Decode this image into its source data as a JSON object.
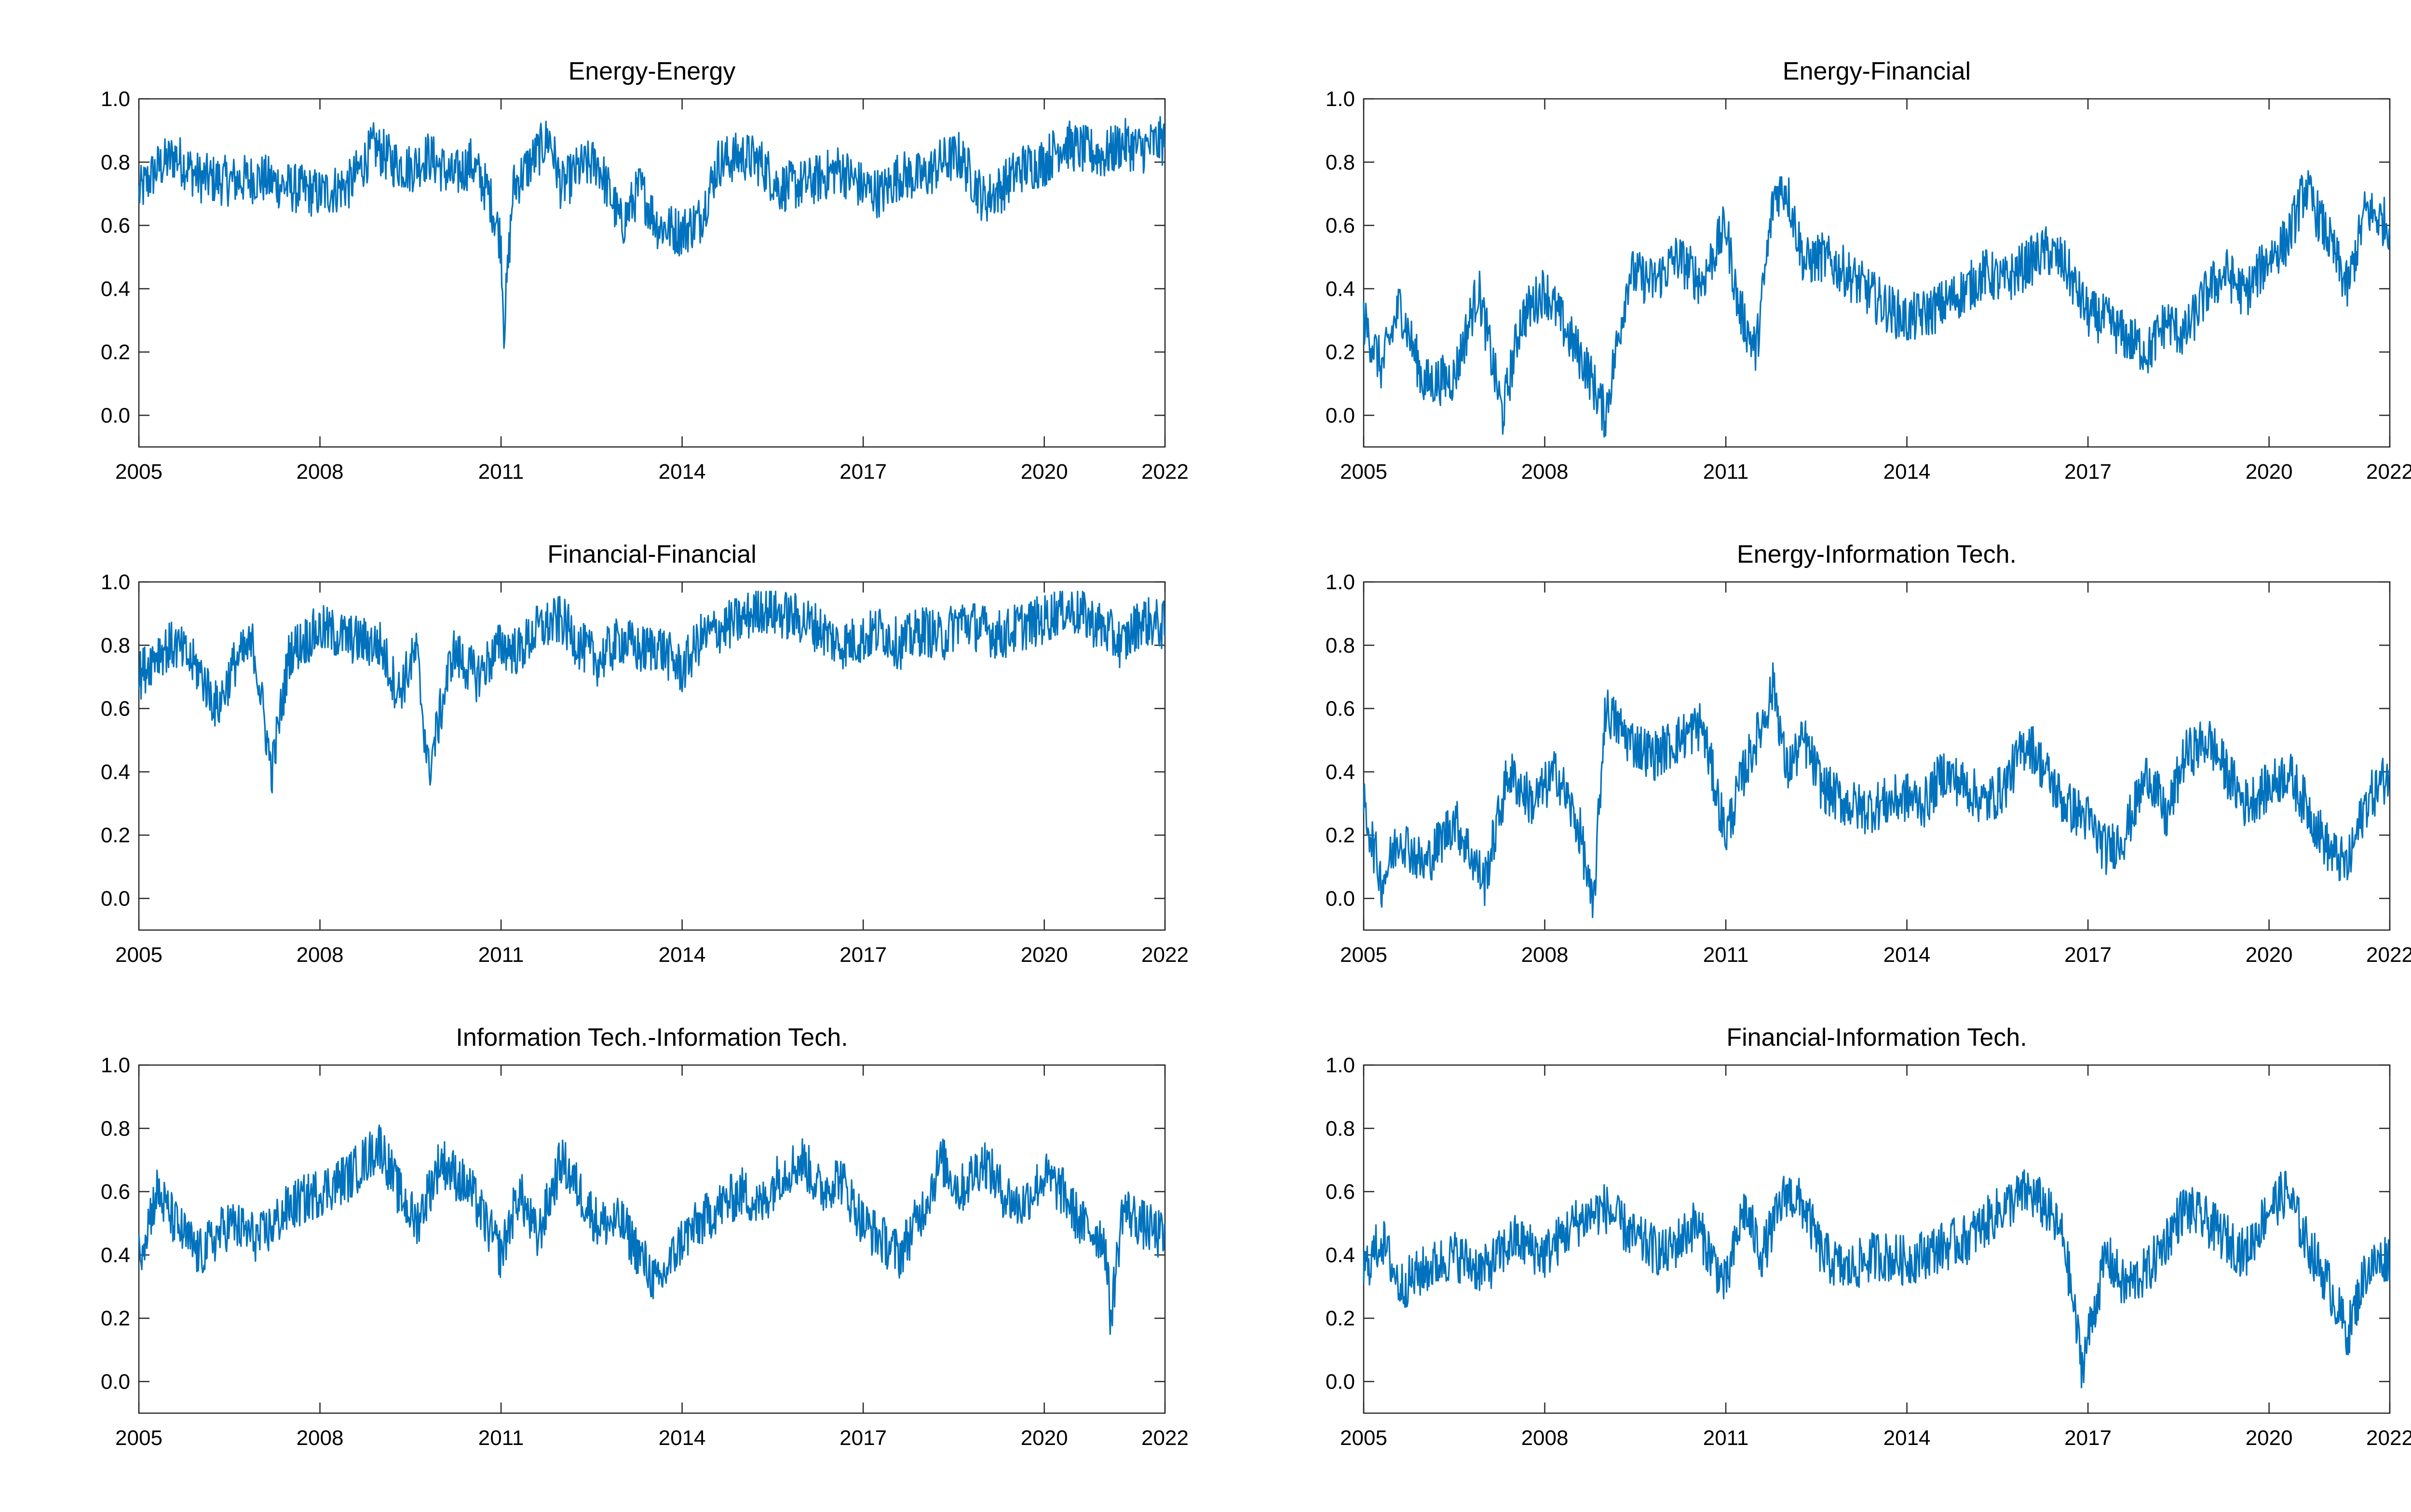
{
  "figure": {
    "line_color": "#0072BD"
  },
  "chart_data": [
    {
      "type": "line",
      "title": "Energy-Energy",
      "xlabel": "",
      "ylabel": "",
      "xlim": [
        2005,
        2022
      ],
      "ylim": [
        -0.1,
        1.0
      ],
      "xticks": [
        "2005",
        "2008",
        "2011",
        "2014",
        "2017",
        "2020",
        "2022"
      ],
      "yticks": [
        "0.0",
        "0.2",
        "0.4",
        "0.6",
        "0.8",
        "1.0"
      ],
      "grid": false,
      "series": [
        {
          "x": [
            2005.0,
            2005.3,
            2005.6,
            2006.0,
            2006.5,
            2007.0,
            2007.5,
            2008.0,
            2008.5,
            2008.9,
            2009.2,
            2009.5,
            2009.8,
            2010.2,
            2010.5,
            2010.8,
            2011.0,
            2011.05,
            2011.2,
            2011.5,
            2011.8,
            2012.0,
            2012.3,
            2012.6,
            2013.0,
            2013.3,
            2013.6,
            2014.0,
            2014.3,
            2014.6,
            2015.0,
            2015.3,
            2015.6,
            2016.0,
            2016.3,
            2016.6,
            2017.0,
            2017.3,
            2017.6,
            2018.0,
            2018.3,
            2018.6,
            2019.0,
            2019.3,
            2019.6,
            2020.0,
            2020.3,
            2020.6,
            2021.0,
            2021.3,
            2021.6,
            2022.0
          ],
          "y": [
            0.7,
            0.78,
            0.82,
            0.75,
            0.74,
            0.75,
            0.72,
            0.7,
            0.73,
            0.85,
            0.8,
            0.78,
            0.82,
            0.75,
            0.8,
            0.7,
            0.55,
            0.27,
            0.72,
            0.8,
            0.88,
            0.72,
            0.78,
            0.8,
            0.6,
            0.72,
            0.6,
            0.58,
            0.62,
            0.8,
            0.82,
            0.8,
            0.72,
            0.73,
            0.75,
            0.78,
            0.72,
            0.7,
            0.76,
            0.75,
            0.8,
            0.82,
            0.68,
            0.72,
            0.78,
            0.8,
            0.86,
            0.84,
            0.82,
            0.86,
            0.84,
            0.87
          ]
        }
      ]
    },
    {
      "type": "line",
      "title": "Energy-Financial",
      "xlabel": "",
      "ylabel": "",
      "xlim": [
        2005,
        2022
      ],
      "ylim": [
        -0.1,
        1.0
      ],
      "xticks": [
        "2005",
        "2008",
        "2011",
        "2014",
        "2017",
        "2020",
        "2022"
      ],
      "yticks": [
        "0.0",
        "0.2",
        "0.4",
        "0.6",
        "0.8",
        "1.0"
      ],
      "grid": false,
      "series": [
        {
          "x": [
            2005.0,
            2005.3,
            2005.6,
            2006.0,
            2006.5,
            2006.9,
            2007.3,
            2007.6,
            2008.0,
            2008.4,
            2008.7,
            2009.0,
            2009.4,
            2009.8,
            2010.2,
            2010.6,
            2011.0,
            2011.2,
            2011.5,
            2011.8,
            2012.0,
            2012.3,
            2012.6,
            2013.0,
            2013.3,
            2013.6,
            2014.0,
            2014.3,
            2014.6,
            2015.0,
            2015.3,
            2015.6,
            2016.0,
            2016.3,
            2016.6,
            2017.0,
            2017.3,
            2017.6,
            2018.0,
            2018.3,
            2018.6,
            2019.0,
            2019.3,
            2019.6,
            2020.0,
            2020.3,
            2020.6,
            2021.0,
            2021.3,
            2021.6,
            2022.0
          ],
          "y": [
            0.3,
            0.15,
            0.35,
            0.1,
            0.12,
            0.4,
            0.0,
            0.3,
            0.4,
            0.25,
            0.15,
            0.0,
            0.45,
            0.42,
            0.5,
            0.42,
            0.6,
            0.35,
            0.2,
            0.7,
            0.72,
            0.48,
            0.5,
            0.45,
            0.4,
            0.35,
            0.3,
            0.32,
            0.35,
            0.4,
            0.45,
            0.42,
            0.48,
            0.52,
            0.48,
            0.32,
            0.3,
            0.25,
            0.2,
            0.3,
            0.25,
            0.4,
            0.45,
            0.38,
            0.5,
            0.55,
            0.72,
            0.55,
            0.4,
            0.65,
            0.6
          ]
        }
      ]
    },
    {
      "type": "line",
      "title": "Financial-Financial",
      "xlabel": "",
      "ylabel": "",
      "xlim": [
        2005,
        2022
      ],
      "ylim": [
        -0.1,
        1.0
      ],
      "xticks": [
        "2005",
        "2008",
        "2011",
        "2014",
        "2017",
        "2020",
        "2022"
      ],
      "yticks": [
        "0.0",
        "0.2",
        "0.4",
        "0.6",
        "0.8",
        "1.0"
      ],
      "grid": false,
      "series": [
        {
          "x": [
            2005.0,
            2005.3,
            2005.6,
            2006.0,
            2006.3,
            2006.6,
            2006.9,
            2007.2,
            2007.5,
            2008.0,
            2008.5,
            2009.0,
            2009.3,
            2009.6,
            2009.8,
            2010.2,
            2010.6,
            2011.0,
            2011.3,
            2011.6,
            2012.0,
            2012.3,
            2012.6,
            2013.0,
            2013.3,
            2013.6,
            2014.0,
            2014.3,
            2014.6,
            2015.0,
            2015.3,
            2015.6,
            2016.0,
            2016.3,
            2016.6,
            2017.0,
            2017.3,
            2017.6,
            2018.0,
            2018.3,
            2018.6,
            2019.0,
            2019.3,
            2019.6,
            2020.0,
            2020.3,
            2020.6,
            2021.0,
            2021.3,
            2021.6,
            2022.0
          ],
          "y": [
            0.7,
            0.78,
            0.8,
            0.72,
            0.6,
            0.75,
            0.8,
            0.4,
            0.78,
            0.85,
            0.82,
            0.8,
            0.65,
            0.78,
            0.4,
            0.78,
            0.7,
            0.8,
            0.78,
            0.85,
            0.88,
            0.8,
            0.75,
            0.82,
            0.78,
            0.8,
            0.72,
            0.82,
            0.85,
            0.88,
            0.92,
            0.9,
            0.88,
            0.85,
            0.8,
            0.82,
            0.85,
            0.8,
            0.85,
            0.82,
            0.88,
            0.85,
            0.83,
            0.86,
            0.88,
            0.92,
            0.9,
            0.85,
            0.8,
            0.88,
            0.86
          ]
        }
      ]
    },
    {
      "type": "line",
      "title": "Energy-Information Tech.",
      "xlabel": "",
      "ylabel": "",
      "xlim": [
        2005,
        2022
      ],
      "ylim": [
        -0.1,
        1.0
      ],
      "xticks": [
        "2005",
        "2008",
        "2011",
        "2014",
        "2017",
        "2020",
        "2022"
      ],
      "yticks": [
        "0.0",
        "0.2",
        "0.4",
        "0.6",
        "0.8",
        "1.0"
      ],
      "grid": false,
      "series": [
        {
          "x": [
            2005.0,
            2005.3,
            2005.6,
            2006.0,
            2006.5,
            2007.0,
            2007.4,
            2007.8,
            2008.2,
            2008.6,
            2008.8,
            2009.0,
            2009.4,
            2009.8,
            2010.2,
            2010.6,
            2011.0,
            2011.3,
            2011.6,
            2011.8,
            2012.0,
            2012.3,
            2012.6,
            2013.0,
            2013.3,
            2013.6,
            2014.0,
            2014.3,
            2014.6,
            2015.0,
            2015.3,
            2015.6,
            2016.0,
            2016.3,
            2016.6,
            2017.0,
            2017.3,
            2017.6,
            2018.0,
            2018.3,
            2018.6,
            2019.0,
            2019.3,
            2019.6,
            2020.0,
            2020.3,
            2020.6,
            2021.0,
            2021.3,
            2021.6,
            2022.0
          ],
          "y": [
            0.3,
            0.05,
            0.2,
            0.1,
            0.25,
            0.05,
            0.4,
            0.3,
            0.4,
            0.2,
            -0.05,
            0.6,
            0.5,
            0.45,
            0.5,
            0.55,
            0.2,
            0.4,
            0.55,
            0.68,
            0.4,
            0.5,
            0.35,
            0.3,
            0.28,
            0.3,
            0.32,
            0.3,
            0.4,
            0.35,
            0.3,
            0.35,
            0.5,
            0.4,
            0.3,
            0.25,
            0.15,
            0.2,
            0.4,
            0.25,
            0.45,
            0.5,
            0.4,
            0.3,
            0.35,
            0.4,
            0.3,
            0.15,
            0.1,
            0.3,
            0.4
          ]
        }
      ]
    },
    {
      "type": "line",
      "title": "Information Tech.-Information Tech.",
      "xlabel": "",
      "ylabel": "",
      "xlim": [
        2005,
        2022
      ],
      "ylim": [
        -0.1,
        1.0
      ],
      "xticks": [
        "2005",
        "2008",
        "2011",
        "2014",
        "2017",
        "2020",
        "2022"
      ],
      "yticks": [
        "0.0",
        "0.2",
        "0.4",
        "0.6",
        "0.8",
        "1.0"
      ],
      "grid": false,
      "series": [
        {
          "x": [
            2005.0,
            2005.3,
            2005.6,
            2006.0,
            2006.5,
            2007.0,
            2007.5,
            2008.0,
            2008.5,
            2009.0,
            2009.3,
            2009.6,
            2010.0,
            2010.5,
            2011.0,
            2011.3,
            2011.6,
            2012.0,
            2012.3,
            2012.6,
            2013.0,
            2013.3,
            2013.6,
            2014.0,
            2014.3,
            2014.6,
            2015.0,
            2015.3,
            2015.6,
            2016.0,
            2016.3,
            2016.6,
            2017.0,
            2017.3,
            2017.6,
            2018.0,
            2018.3,
            2018.6,
            2019.0,
            2019.3,
            2019.6,
            2020.0,
            2020.3,
            2020.6,
            2021.0,
            2021.1,
            2021.3,
            2021.6,
            2022.0
          ],
          "y": [
            0.4,
            0.6,
            0.5,
            0.4,
            0.5,
            0.45,
            0.55,
            0.6,
            0.65,
            0.75,
            0.6,
            0.5,
            0.7,
            0.6,
            0.4,
            0.6,
            0.45,
            0.7,
            0.6,
            0.5,
            0.5,
            0.4,
            0.3,
            0.45,
            0.5,
            0.55,
            0.6,
            0.55,
            0.65,
            0.7,
            0.6,
            0.65,
            0.5,
            0.45,
            0.4,
            0.55,
            0.7,
            0.6,
            0.7,
            0.6,
            0.55,
            0.65,
            0.6,
            0.5,
            0.45,
            0.2,
            0.55,
            0.5,
            0.45
          ]
        }
      ]
    },
    {
      "type": "line",
      "title": "Financial-Information Tech.",
      "xlabel": "",
      "ylabel": "",
      "xlim": [
        2005,
        2022
      ],
      "ylim": [
        -0.1,
        1.0
      ],
      "xticks": [
        "2005",
        "2008",
        "2011",
        "2014",
        "2017",
        "2020",
        "2022"
      ],
      "yticks": [
        "0.0",
        "0.2",
        "0.4",
        "0.6",
        "0.8",
        "1.0"
      ],
      "grid": false,
      "series": [
        {
          "x": [
            2005.0,
            2005.3,
            2005.6,
            2006.0,
            2006.5,
            2007.0,
            2007.5,
            2008.0,
            2008.5,
            2009.0,
            2009.5,
            2010.0,
            2010.5,
            2011.0,
            2011.3,
            2011.6,
            2012.0,
            2012.3,
            2012.6,
            2013.0,
            2013.5,
            2014.0,
            2014.5,
            2015.0,
            2015.3,
            2015.6,
            2016.0,
            2016.3,
            2016.6,
            2016.9,
            2017.3,
            2017.6,
            2018.0,
            2018.3,
            2018.6,
            2019.0,
            2019.3,
            2019.6,
            2020.0,
            2020.3,
            2020.6,
            2021.0,
            2021.3,
            2021.6,
            2022.0
          ],
          "y": [
            0.35,
            0.45,
            0.3,
            0.35,
            0.4,
            0.35,
            0.45,
            0.4,
            0.5,
            0.55,
            0.45,
            0.4,
            0.5,
            0.3,
            0.55,
            0.4,
            0.6,
            0.55,
            0.4,
            0.35,
            0.4,
            0.38,
            0.42,
            0.45,
            0.5,
            0.55,
            0.6,
            0.55,
            0.45,
            0.05,
            0.4,
            0.3,
            0.35,
            0.45,
            0.55,
            0.5,
            0.45,
            0.4,
            0.55,
            0.6,
            0.45,
            0.3,
            0.15,
            0.35,
            0.4
          ]
        }
      ]
    }
  ]
}
